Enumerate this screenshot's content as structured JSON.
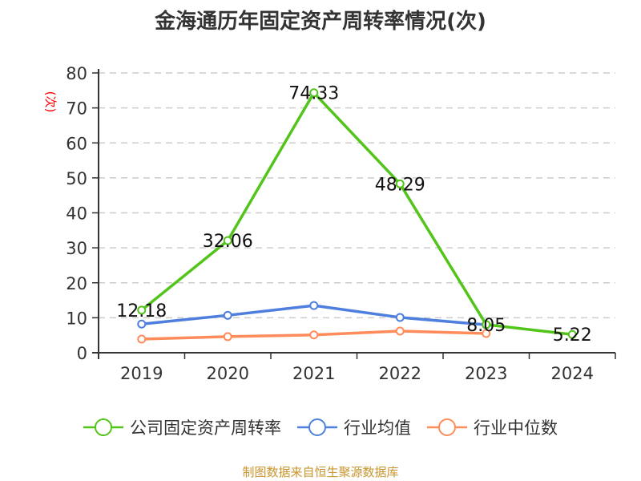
{
  "title": "金海通历年固定资产周转率情况(次)",
  "source_note": "制图数据来自恒生聚源数据库",
  "y_unit_label": "(次)",
  "colors": {
    "company": "#52c41a",
    "industry_avg": "#4e7fdf",
    "industry_median": "#ff8c5a",
    "grid": "#cccccc",
    "axis": "#333333",
    "unit_label": "#ff0000",
    "source": "#c8952e"
  },
  "legend": [
    {
      "label": "公司固定资产周转率",
      "color": "#52c41a"
    },
    {
      "label": "行业均值",
      "color": "#4e7fdf"
    },
    {
      "label": "行业中位数",
      "color": "#ff8c5a"
    }
  ],
  "chart_data": {
    "type": "line",
    "title": "金海通历年固定资产周转率情况(次)",
    "xlabel": "",
    "ylabel": "(次)",
    "categories": [
      "2019",
      "2020",
      "2021",
      "2022",
      "2023",
      "2024"
    ],
    "ylim": [
      0,
      80
    ],
    "yticks": [
      0,
      10,
      20,
      30,
      40,
      50,
      60,
      70,
      80
    ],
    "grid": true,
    "legend_position": "bottom",
    "series": [
      {
        "name": "公司固定资产周转率",
        "values": [
          12.18,
          32.06,
          74.33,
          48.29,
          8.05,
          5.22
        ],
        "labels": [
          "12.18",
          "32.06",
          "74.33",
          "48.29",
          "8.05",
          "5.22"
        ]
      },
      {
        "name": "行业均值",
        "values": [
          8.2,
          10.7,
          13.5,
          10.1,
          8.0,
          null
        ]
      },
      {
        "name": "行业中位数",
        "values": [
          3.9,
          4.6,
          5.1,
          6.2,
          5.5,
          null
        ]
      }
    ]
  }
}
